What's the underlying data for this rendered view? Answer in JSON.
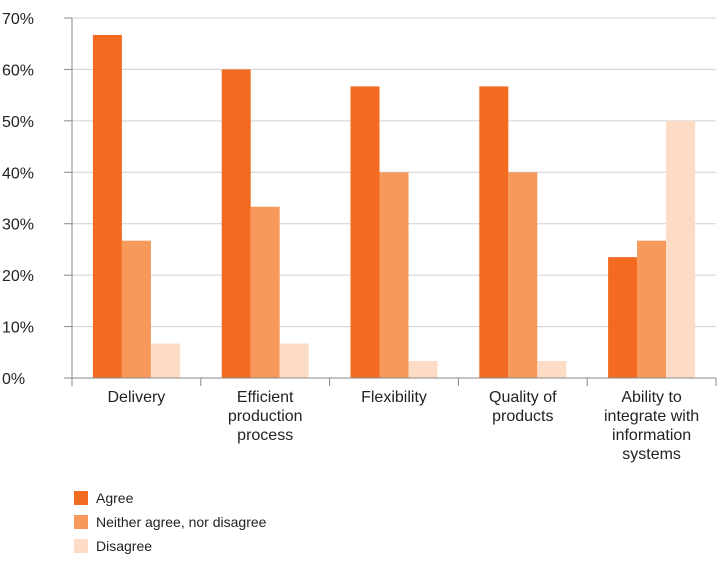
{
  "chart_data": {
    "type": "bar",
    "categories": [
      [
        "Delivery"
      ],
      [
        "Efficient",
        "production",
        "process"
      ],
      [
        "Flexibility"
      ],
      [
        "Quality of",
        "products"
      ],
      [
        "Ability to",
        "integrate with",
        "information",
        "systems"
      ]
    ],
    "series": [
      {
        "name": "Agree",
        "color": "#f26b21",
        "values": [
          66.7,
          60.0,
          56.7,
          56.7,
          23.5
        ]
      },
      {
        "name": "Neither agree, nor disagree",
        "color": "#f6995b",
        "values": [
          26.7,
          33.3,
          40.0,
          40.0,
          26.7
        ]
      },
      {
        "name": "Disagree",
        "color": "#fcdcc5",
        "values": [
          6.7,
          6.7,
          3.3,
          3.3,
          50.0
        ]
      }
    ],
    "yticks": [
      "0%",
      "10%",
      "20%",
      "30%",
      "40%",
      "50%",
      "60%",
      "70%"
    ],
    "ylim": [
      0,
      70
    ],
    "grid": true,
    "legend_position": "bottom-left"
  }
}
